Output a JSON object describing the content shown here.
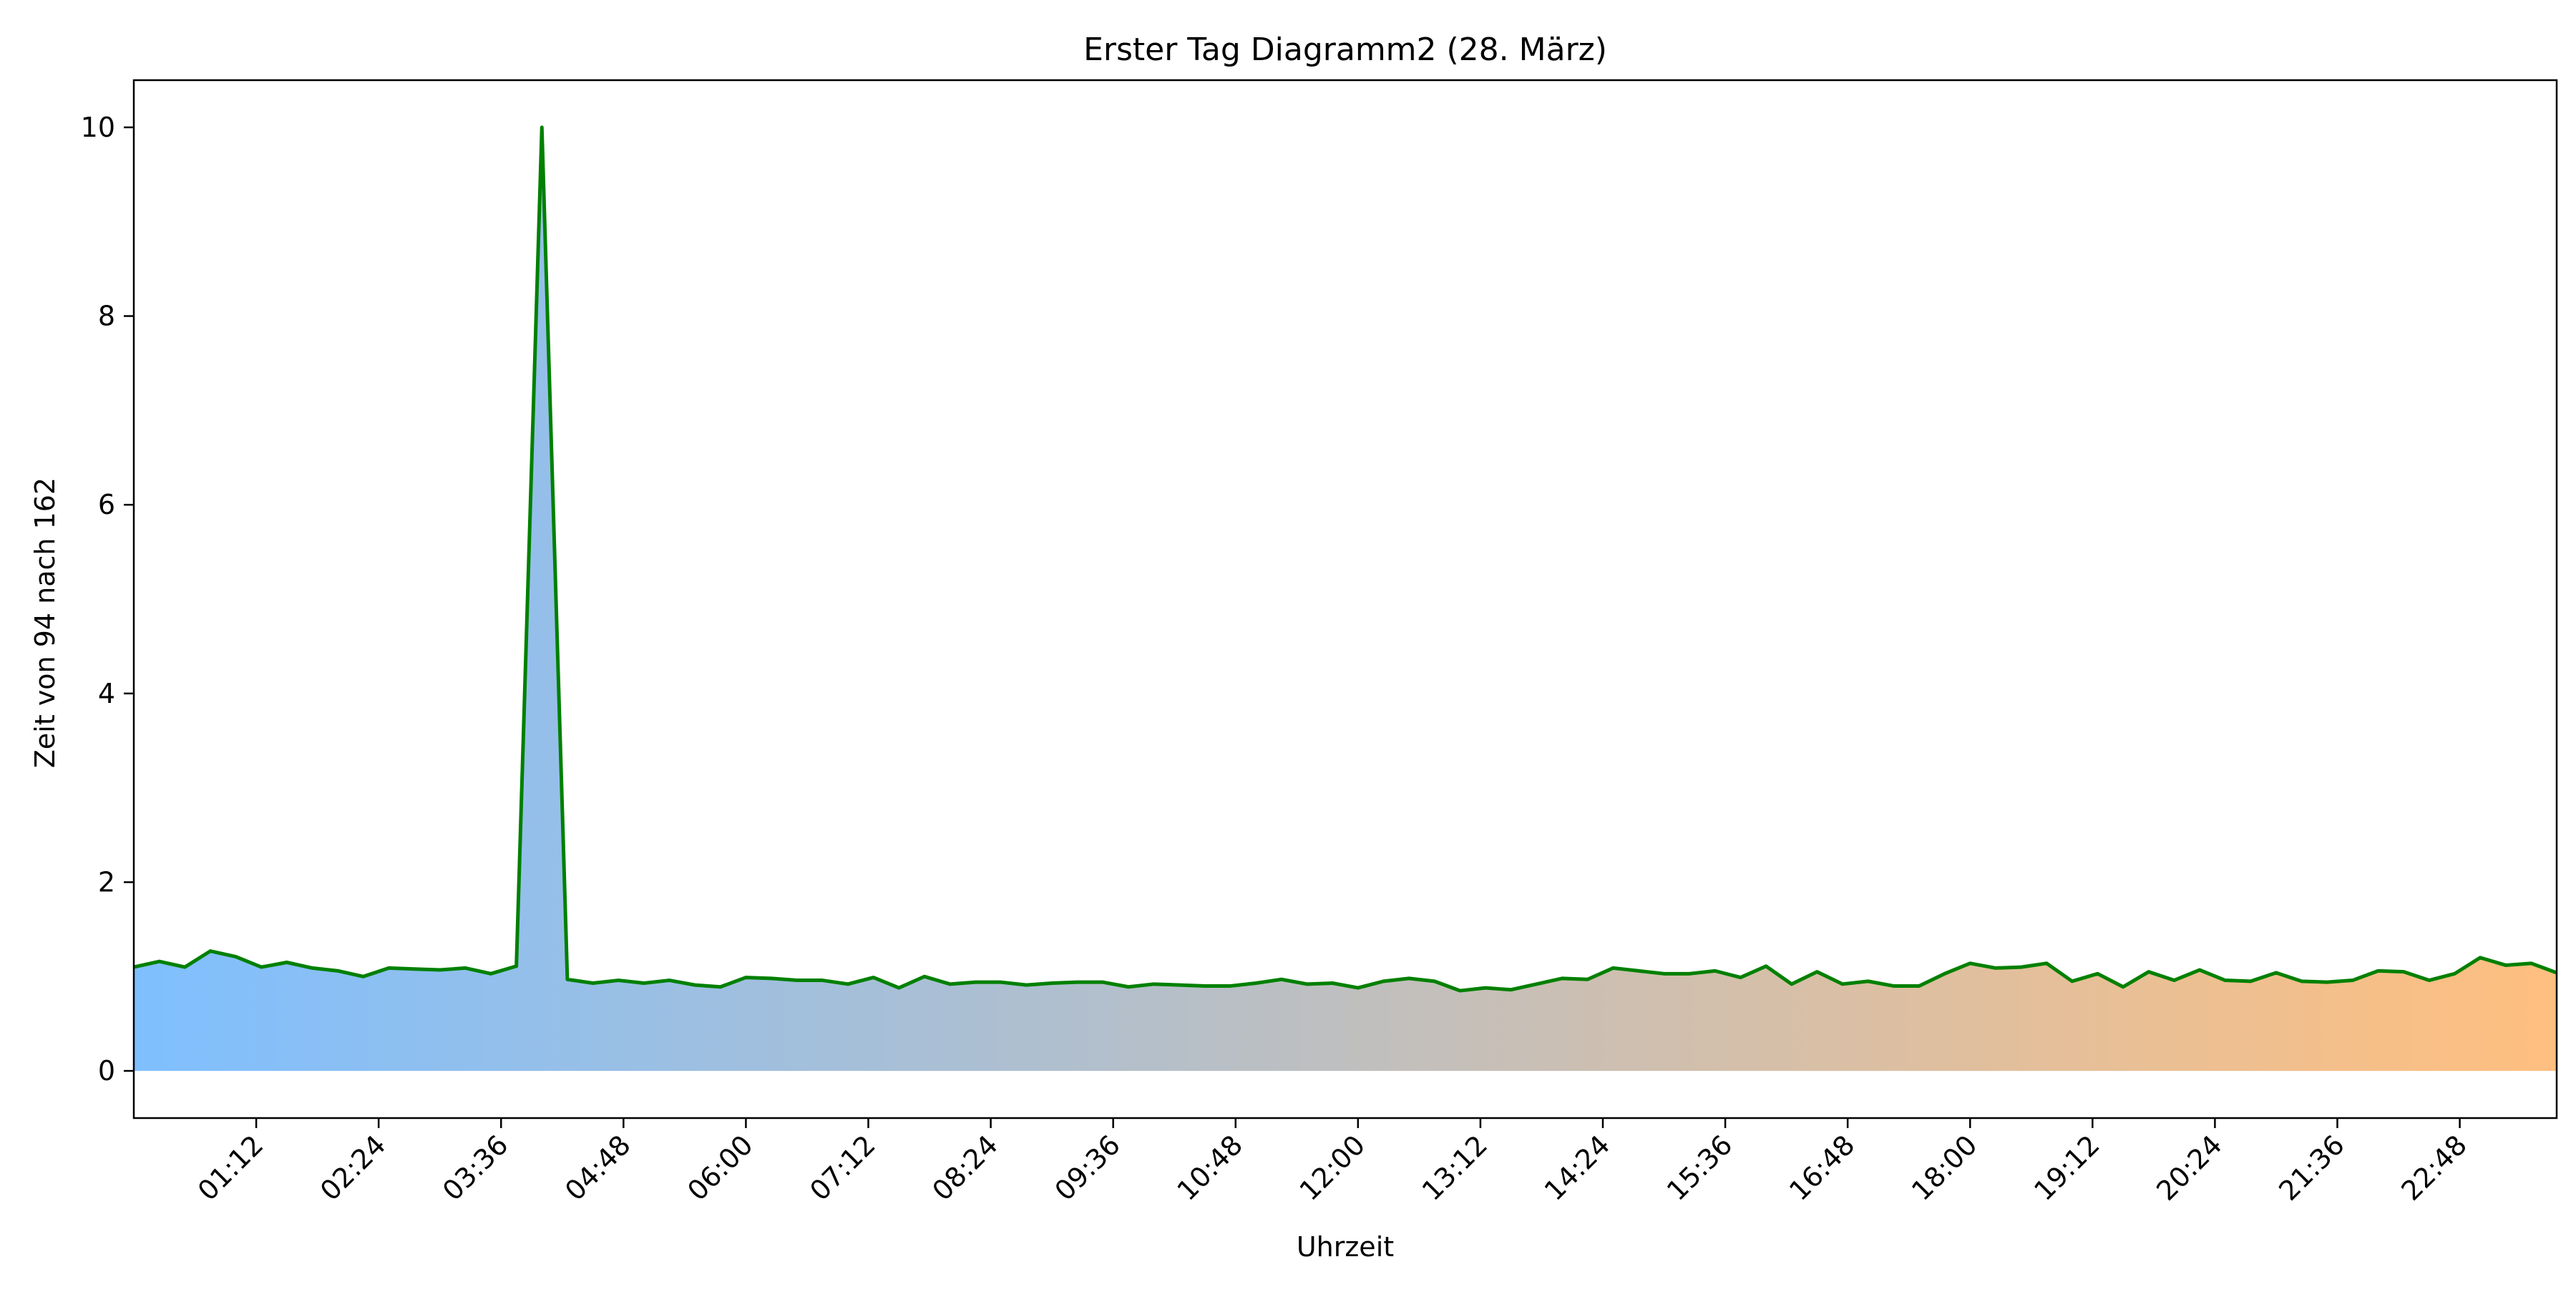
{
  "chart_data": {
    "type": "area",
    "title": "Erster Tag Diagramm2 (28. März)",
    "xlabel": "Uhrzeit",
    "ylabel": "Zeit von 94 nach 162",
    "xlim": [
      "00:00",
      "23:45"
    ],
    "ylim": [
      -0.5,
      10.5
    ],
    "y_ticks": [
      0,
      2,
      4,
      6,
      8,
      10
    ],
    "x_tick_labels": [
      "01:12",
      "02:24",
      "03:36",
      "04:48",
      "06:00",
      "07:12",
      "08:24",
      "09:36",
      "10:48",
      "12:00",
      "13:12",
      "14:24",
      "15:36",
      "16:48",
      "18:00",
      "19:12",
      "20:24",
      "21:36",
      "22:48"
    ],
    "grid": false,
    "line_color": "#008000",
    "fill_gradient": [
      "#7fbfff",
      "#ffbf7f"
    ],
    "series": [
      {
        "x": [
          "00:00",
          "00:15",
          "00:30",
          "00:45",
          "01:00",
          "01:15",
          "01:30",
          "01:45",
          "02:00",
          "02:15",
          "02:30",
          "02:45",
          "03:00",
          "03:15",
          "03:30",
          "03:45",
          "04:00",
          "04:15",
          "04:30",
          "04:45",
          "05:00",
          "05:15",
          "05:30",
          "05:45",
          "06:00",
          "06:15",
          "06:30",
          "06:45",
          "07:00",
          "07:15",
          "07:30",
          "07:45",
          "08:00",
          "08:15",
          "08:30",
          "08:45",
          "09:00",
          "09:15",
          "09:30",
          "09:45",
          "10:00",
          "10:15",
          "10:30",
          "10:45",
          "11:00",
          "11:15",
          "11:30",
          "11:45",
          "12:00",
          "12:15",
          "12:30",
          "12:45",
          "13:00",
          "13:15",
          "13:30",
          "13:45",
          "14:00",
          "14:15",
          "14:30",
          "14:45",
          "15:00",
          "15:15",
          "15:30",
          "15:45",
          "16:00",
          "16:15",
          "16:30",
          "16:45",
          "17:00",
          "17:15",
          "17:30",
          "17:45",
          "18:00",
          "18:15",
          "18:30",
          "18:45",
          "19:00",
          "19:15",
          "19:30",
          "19:45",
          "20:00",
          "20:15",
          "20:30",
          "20:45",
          "21:00",
          "21:15",
          "21:30",
          "21:45",
          "22:00",
          "22:15",
          "22:30",
          "22:45",
          "23:00",
          "23:15",
          "23:30",
          "23:45"
        ],
        "values": [
          1.1,
          1.16,
          1.1,
          1.27,
          1.21,
          1.1,
          1.15,
          1.09,
          1.06,
          1.0,
          1.09,
          1.08,
          1.07,
          1.09,
          1.03,
          1.11,
          10.0,
          0.97,
          0.93,
          0.96,
          0.93,
          0.96,
          0.91,
          0.89,
          0.99,
          0.98,
          0.96,
          0.96,
          0.92,
          0.99,
          0.88,
          1.0,
          0.92,
          0.94,
          0.94,
          0.91,
          0.93,
          0.94,
          0.94,
          0.89,
          0.92,
          0.91,
          0.9,
          0.9,
          0.93,
          0.97,
          0.92,
          0.93,
          0.88,
          0.95,
          0.98,
          0.95,
          0.85,
          0.88,
          0.86,
          0.92,
          0.98,
          0.97,
          1.09,
          1.06,
          1.03,
          1.03,
          1.06,
          0.99,
          1.11,
          0.92,
          1.05,
          0.92,
          0.95,
          0.9,
          0.9,
          1.03,
          1.14,
          1.09,
          1.1,
          1.14,
          0.95,
          1.03,
          0.89,
          1.05,
          0.96,
          1.07,
          0.96,
          0.95,
          1.04,
          0.95,
          0.94,
          0.96,
          1.06,
          1.05,
          0.96,
          1.03,
          1.2,
          1.12,
          1.14,
          1.04
        ]
      }
    ]
  }
}
